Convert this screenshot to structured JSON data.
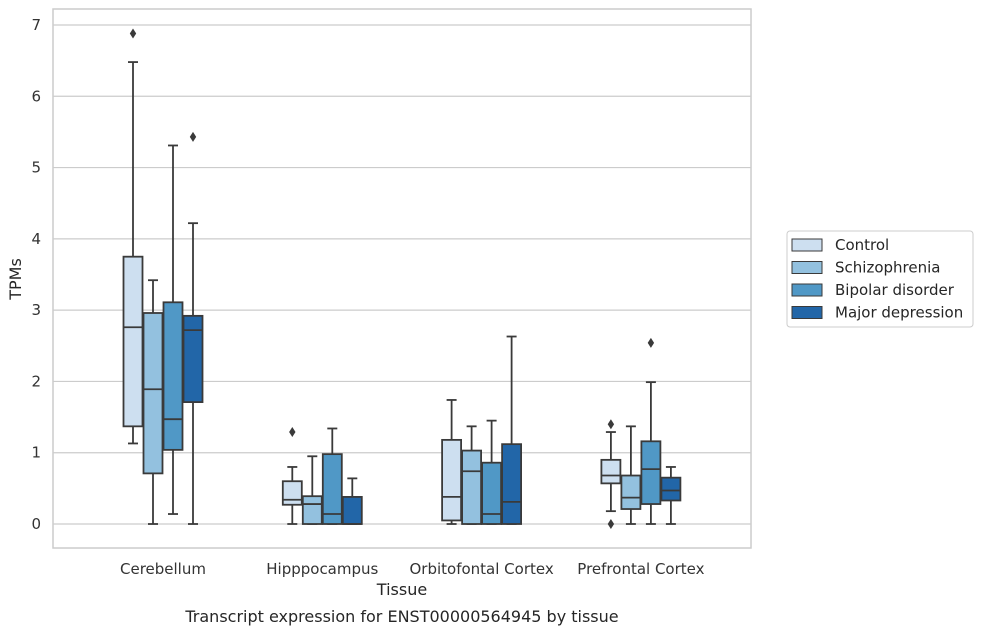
{
  "chart_data": {
    "type": "box",
    "xlabel": "Tissue",
    "ylabel": "TPMs",
    "caption": "Transcript expression for ENST00000564945 by tissue",
    "ylim": [
      -0.33,
      7.2
    ],
    "yticks": [
      0,
      1,
      2,
      3,
      4,
      5,
      6,
      7
    ],
    "grid": "horizontal",
    "legend_position": "right",
    "categories": [
      "Cerebellum",
      "Hipppocampus",
      "Orbitofontal Cortex",
      "Prefrontal Cortex"
    ],
    "series": [
      {
        "name": "Control",
        "color": "#cddff0",
        "boxes": [
          {
            "whislo": 1.13,
            "q1": 1.37,
            "med": 2.76,
            "q3": 3.75,
            "whishi": 6.48,
            "fliers": [
              6.88
            ]
          },
          {
            "whislo": 0.0,
            "q1": 0.27,
            "med": 0.34,
            "q3": 0.6,
            "whishi": 0.8,
            "fliers": [
              1.29
            ]
          },
          {
            "whislo": 0.0,
            "q1": 0.05,
            "med": 0.38,
            "q3": 1.18,
            "whishi": 1.74,
            "fliers": []
          },
          {
            "whislo": 0.18,
            "q1": 0.57,
            "med": 0.68,
            "q3": 0.9,
            "whishi": 1.29,
            "fliers": [
              1.4,
              0.0
            ]
          }
        ]
      },
      {
        "name": "Schizophrenia",
        "color": "#93c1df",
        "boxes": [
          {
            "whislo": 0.0,
            "q1": 0.71,
            "med": 1.89,
            "q3": 2.96,
            "whishi": 3.42,
            "fliers": []
          },
          {
            "whislo": 0.0,
            "q1": 0.0,
            "med": 0.28,
            "q3": 0.39,
            "whishi": 0.95,
            "fliers": []
          },
          {
            "whislo": 0.0,
            "q1": 0.0,
            "med": 0.74,
            "q3": 1.03,
            "whishi": 1.37,
            "fliers": []
          },
          {
            "whislo": 0.0,
            "q1": 0.21,
            "med": 0.37,
            "q3": 0.68,
            "whishi": 1.37,
            "fliers": []
          }
        ]
      },
      {
        "name": "Bipolar disorder",
        "color": "#5098c6",
        "boxes": [
          {
            "whislo": 0.14,
            "q1": 1.04,
            "med": 1.47,
            "q3": 3.11,
            "whishi": 5.31,
            "fliers": []
          },
          {
            "whislo": 0.0,
            "q1": 0.0,
            "med": 0.14,
            "q3": 0.98,
            "whishi": 1.34,
            "fliers": []
          },
          {
            "whislo": 0.0,
            "q1": 0.0,
            "med": 0.14,
            "q3": 0.86,
            "whishi": 1.45,
            "fliers": []
          },
          {
            "whislo": 0.0,
            "q1": 0.28,
            "med": 0.77,
            "q3": 1.16,
            "whishi": 1.99,
            "fliers": [
              2.54
            ]
          }
        ]
      },
      {
        "name": "Major depression",
        "color": "#2266a8",
        "boxes": [
          {
            "whislo": 0.0,
            "q1": 1.71,
            "med": 2.72,
            "q3": 2.92,
            "whishi": 4.22,
            "fliers": [
              5.43
            ]
          },
          {
            "whislo": 0.0,
            "q1": 0.0,
            "med": 0.0,
            "q3": 0.38,
            "whishi": 0.64,
            "fliers": []
          },
          {
            "whislo": 0.0,
            "q1": 0.0,
            "med": 0.31,
            "q3": 1.12,
            "whishi": 2.63,
            "fliers": []
          },
          {
            "whislo": 0.0,
            "q1": 0.33,
            "med": 0.47,
            "q3": 0.65,
            "whishi": 0.8,
            "fliers": []
          }
        ]
      }
    ]
  }
}
